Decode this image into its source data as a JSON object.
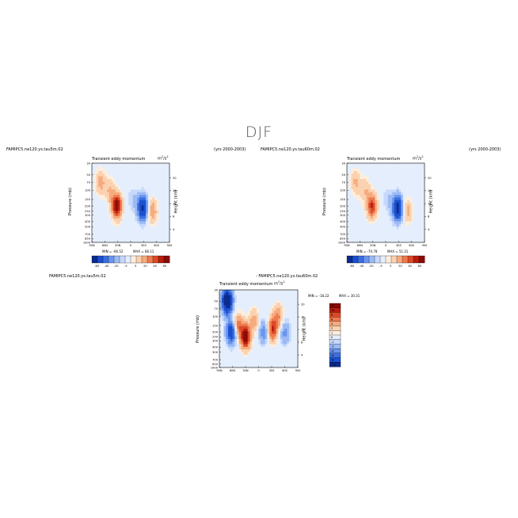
{
  "page_title": "DJF",
  "colors": {
    "palette": [
      "#0b2a8f",
      "#1b4fcf",
      "#3b6fe0",
      "#6a95ee",
      "#9bbaf5",
      "#c6d8fb",
      "#e4eefd",
      "#fdeedd",
      "#fbd2b0",
      "#f6ab7f",
      "#ef7a4e",
      "#dc4a27",
      "#b81d0e",
      "#8a0a05"
    ],
    "background": "#ffffff"
  },
  "chart_data": [
    {
      "type": "heatmap",
      "case": "FAMIPC5.ne120.ys.tau5m.02",
      "title": "Transient eddy momentum",
      "units_base": "m",
      "units_exp1": "2",
      "units_mid": "/s",
      "units_exp2": "2",
      "years": "(yrs 2000-2003)",
      "ylabel": "Pressure (mb)",
      "ylabel_right": "Height (km)",
      "x_ticks": [
        "90N",
        "60N",
        "30N",
        "0",
        "30S",
        "60S",
        "90S"
      ],
      "y_ticks": [
        "30",
        "50",
        "70",
        "100",
        "150",
        "200",
        "250",
        "300",
        "400",
        "500",
        "700",
        "850",
        "1000"
      ],
      "height_ticks": [
        "20",
        "16",
        "12",
        "8",
        "4"
      ],
      "min_label": "MIN = -66.52",
      "max_label": "MAX = 68.11",
      "colorbar_labels": [
        "-60",
        "-40",
        "-20",
        "-5",
        "5",
        "20",
        "40",
        "60"
      ],
      "features": [
        {
          "lat": 32,
          "p": 200,
          "value": 68
        },
        {
          "lat": 48,
          "p": 100,
          "value": 20
        },
        {
          "lat": 70,
          "p": 70,
          "value": 25
        },
        {
          "lat": -28,
          "p": 220,
          "value": -66
        },
        {
          "lat": -5,
          "p": 150,
          "value": -10
        },
        {
          "lat": -50,
          "p": 250,
          "value": 30
        },
        {
          "lat": -78,
          "p": 40,
          "value": 5
        }
      ]
    },
    {
      "type": "heatmap",
      "case": "FAMIPC5.ne120.ys.tau60m.02",
      "title": "Transient eddy momentum",
      "units_base": "m",
      "units_exp1": "2",
      "units_mid": "/s",
      "units_exp2": "2",
      "years": "(yrs 2000-2003)",
      "ylabel": "Pressure (mb)",
      "ylabel_right": "Height (km)",
      "x_ticks": [
        "90N",
        "60N",
        "30N",
        "0",
        "30S",
        "60S",
        "90S"
      ],
      "y_ticks": [
        "30",
        "50",
        "70",
        "100",
        "150",
        "200",
        "250",
        "300",
        "400",
        "500",
        "700",
        "850",
        "1000"
      ],
      "height_ticks": [
        "20",
        "16",
        "12",
        "8",
        "4"
      ],
      "min_label": "MIN = -70.78",
      "max_label": "MAX = 51.31",
      "colorbar_labels": [
        "-60",
        "-40",
        "-20",
        "-5",
        "5",
        "20",
        "40",
        "60"
      ],
      "features": [
        {
          "lat": 32,
          "p": 200,
          "value": 51
        },
        {
          "lat": 48,
          "p": 100,
          "value": 18
        },
        {
          "lat": 70,
          "p": 70,
          "value": 22
        },
        {
          "lat": -28,
          "p": 220,
          "value": -70
        },
        {
          "lat": -5,
          "p": 150,
          "value": -10
        },
        {
          "lat": -50,
          "p": 250,
          "value": 25
        },
        {
          "lat": -78,
          "p": 40,
          "value": 5
        }
      ]
    },
    {
      "type": "heatmap",
      "case_label": "FAMIPC5.ne120.ys.tau5m.02",
      "diff_title": "- FAMIPC5.ne120.ys.tau60m.02",
      "title": "Transient eddy momentum",
      "units_base": "m",
      "units_exp1": "2",
      "units_mid": "/s",
      "units_exp2": "2",
      "ylabel": "Pressure (mb)",
      "ylabel_right": "Height (km)",
      "x_ticks": [
        "90N",
        "60N",
        "30N",
        "0",
        "30S",
        "60S",
        "90S"
      ],
      "y_ticks": [
        "30",
        "50",
        "70",
        "100",
        "150",
        "200",
        "250",
        "300",
        "400",
        "500",
        "700",
        "850",
        "1000"
      ],
      "height_ticks": [
        "20",
        "16",
        "12",
        "8",
        "4"
      ],
      "min_label": "MIN = -18.22",
      "max_label": "MAX = 30.31",
      "colorbar_labels": [
        "12",
        "10",
        "8",
        "6",
        "4",
        "2",
        "1",
        "0",
        "-1",
        "-2",
        "-4",
        "-6",
        "-8",
        "-12"
      ],
      "features": [
        {
          "lat": 72,
          "p": 50,
          "value": -18
        },
        {
          "lat": 62,
          "p": 200,
          "value": -12
        },
        {
          "lat": 48,
          "p": 150,
          "value": 8
        },
        {
          "lat": 30,
          "p": 250,
          "value": 14
        },
        {
          "lat": 10,
          "p": 120,
          "value": 5
        },
        {
          "lat": -12,
          "p": 200,
          "value": -6
        },
        {
          "lat": -32,
          "p": 180,
          "value": 10
        },
        {
          "lat": -45,
          "p": 100,
          "value": 6
        },
        {
          "lat": -60,
          "p": 200,
          "value": -5
        }
      ]
    }
  ]
}
